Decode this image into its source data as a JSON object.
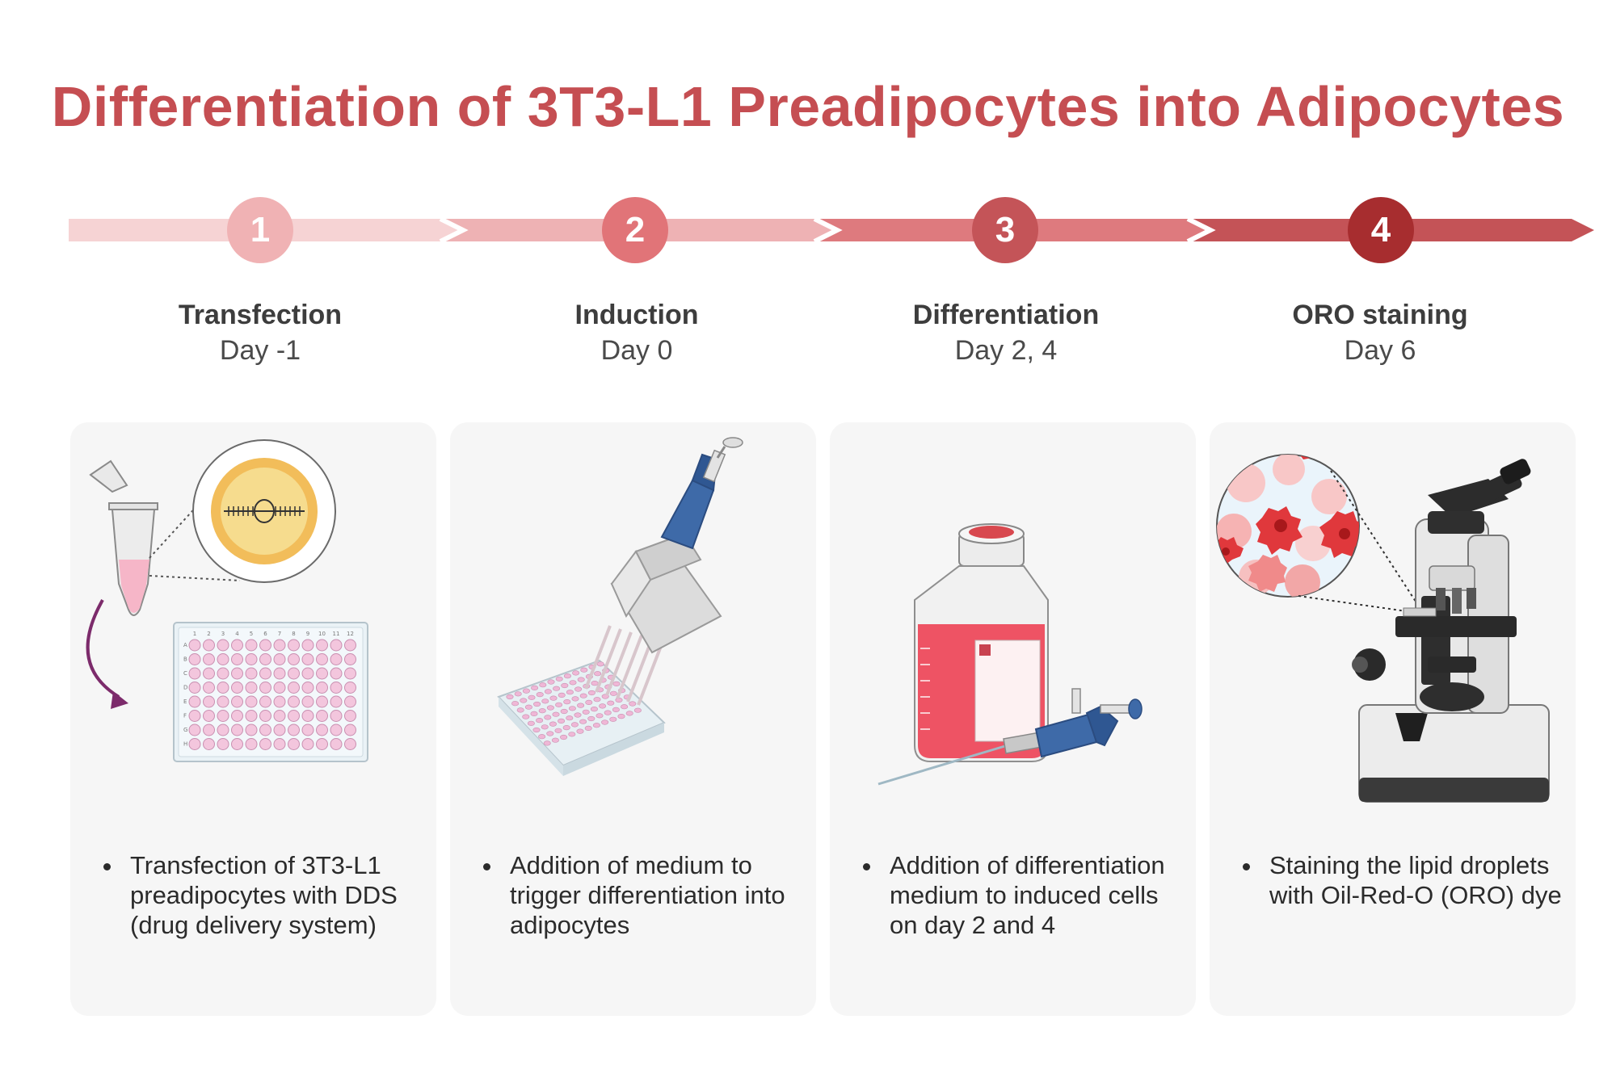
{
  "title": "Differentiation of 3T3-L1 Preadipocytes into Adipocytes",
  "colors": {
    "title": "#c54e52",
    "arrow_segments": [
      "#f6d3d4",
      "#eeb2b4",
      "#de7a7e",
      "#c45357"
    ],
    "step_circles": [
      "#f0b2b4",
      "#e17478",
      "#c45458",
      "#a72d2f"
    ],
    "card_background": "#f6f6f6"
  },
  "steps": [
    {
      "number": "1",
      "name": "Transfection",
      "day": "Day -1",
      "description": "Transfection of 3T3-L1 preadipocytes with DDS (drug delivery system)",
      "illustration": "tube-plasmid-96-well-plate"
    },
    {
      "number": "2",
      "name": "Induction",
      "day": "Day 0",
      "description": "Addition of medium to trigger differentiation into adipocytes",
      "illustration": "multichannel-pipette-plate"
    },
    {
      "number": "3",
      "name": "Differentiation",
      "day": "Day 2, 4",
      "description": "Addition of differentiation medium to induced cells on day 2 and 4",
      "illustration": "culture-flask-pipette"
    },
    {
      "number": "4",
      "name": "ORO staining",
      "day": "Day 6",
      "description": "Staining the lipid droplets with Oil-Red-O (ORO) dye",
      "illustration": "microscope-stained-cells"
    }
  ],
  "plate_columns": [
    "1",
    "2",
    "3",
    "4",
    "5",
    "6",
    "7",
    "8",
    "9",
    "10",
    "11",
    "12"
  ],
  "plate_rows": [
    "A",
    "B",
    "C",
    "D",
    "E",
    "F",
    "G",
    "H"
  ]
}
